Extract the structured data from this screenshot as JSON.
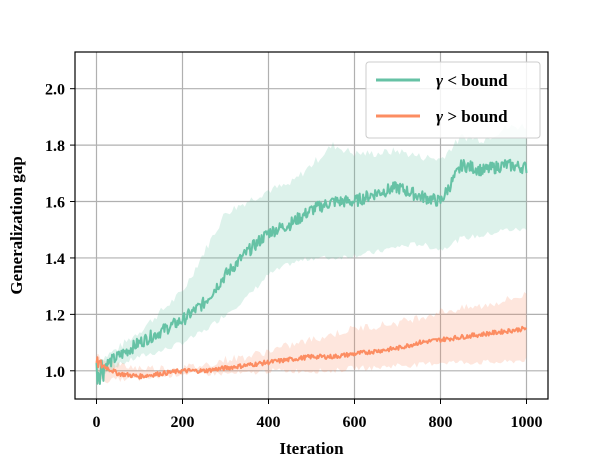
{
  "chart_data": {
    "type": "line",
    "title": "",
    "xlabel": "Iteration",
    "ylabel": "Generalization gap",
    "xlim": [
      -50,
      1050
    ],
    "ylim": [
      0.9,
      2.13
    ],
    "xticks": [
      "0",
      "200",
      "400",
      "600",
      "800",
      "1000"
    ],
    "yticks": [
      "1.0",
      "1.2",
      "1.4",
      "1.6",
      "1.8",
      "2.0"
    ],
    "grid": true,
    "legend_position": "top-right",
    "colors": {
      "below": "#66c2a5",
      "above": "#fc8d62",
      "grid": "#b0b0b0"
    },
    "x": [
      0,
      50,
      100,
      150,
      200,
      250,
      300,
      350,
      400,
      450,
      500,
      550,
      600,
      650,
      700,
      750,
      800,
      850,
      900,
      950,
      1000
    ],
    "series": [
      {
        "name": "γ < bound",
        "legend_symbol": "γ",
        "legend_rest": " < bound",
        "values": [
          1.0,
          1.05,
          1.1,
          1.14,
          1.18,
          1.24,
          1.34,
          1.42,
          1.49,
          1.52,
          1.57,
          1.6,
          1.6,
          1.63,
          1.65,
          1.62,
          1.6,
          1.73,
          1.71,
          1.73,
          1.72
        ],
        "band_low": [
          0.97,
          1.02,
          1.05,
          1.07,
          1.1,
          1.14,
          1.2,
          1.26,
          1.34,
          1.38,
          1.4,
          1.4,
          1.41,
          1.42,
          1.44,
          1.45,
          1.43,
          1.47,
          1.48,
          1.5,
          1.5
        ],
        "band_high": [
          1.03,
          1.08,
          1.14,
          1.21,
          1.28,
          1.42,
          1.56,
          1.6,
          1.64,
          1.66,
          1.73,
          1.8,
          1.77,
          1.77,
          1.78,
          1.76,
          1.75,
          1.83,
          1.82,
          1.86,
          1.87
        ]
      },
      {
        "name": "γ > bound",
        "legend_symbol": "γ",
        "legend_rest": " > bound",
        "values": [
          1.03,
          0.99,
          0.98,
          0.99,
          1.0,
          1.0,
          1.01,
          1.02,
          1.03,
          1.04,
          1.05,
          1.05,
          1.06,
          1.07,
          1.08,
          1.1,
          1.11,
          1.12,
          1.13,
          1.14,
          1.15
        ],
        "band_low": [
          0.96,
          0.97,
          0.97,
          0.98,
          0.99,
          0.99,
          0.99,
          0.99,
          1.0,
          1.0,
          1.0,
          1.0,
          1.01,
          1.01,
          1.02,
          1.02,
          1.03,
          1.03,
          1.03,
          1.03,
          1.04
        ],
        "band_high": [
          1.06,
          1.02,
          1.01,
          1.01,
          1.01,
          1.02,
          1.04,
          1.05,
          1.07,
          1.09,
          1.11,
          1.13,
          1.15,
          1.16,
          1.17,
          1.19,
          1.21,
          1.22,
          1.23,
          1.25,
          1.27
        ]
      }
    ]
  }
}
